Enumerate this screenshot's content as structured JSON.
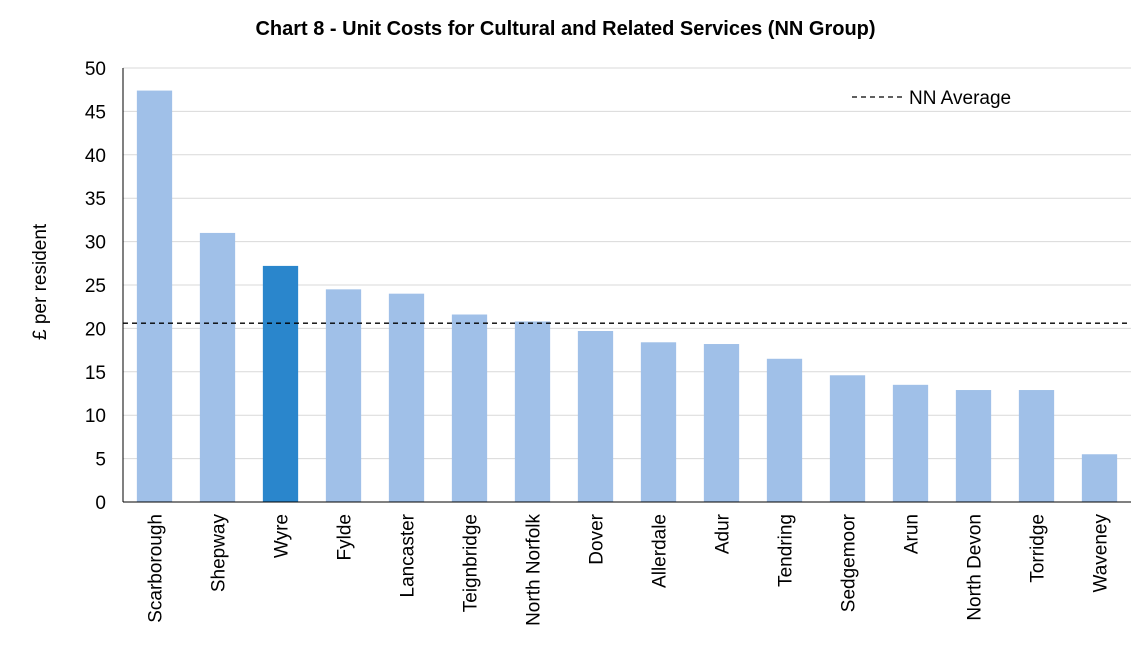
{
  "chart_data": {
    "type": "bar",
    "title": "Chart 8 - Unit Costs for Cultural and Related Services (NN Group)",
    "xlabel": "",
    "ylabel": "£ per resident",
    "ylim": [
      0,
      50
    ],
    "yticks": [
      0,
      5,
      10,
      15,
      20,
      25,
      30,
      35,
      40,
      45,
      50
    ],
    "grid": true,
    "legend": {
      "position": "top-right",
      "entries": [
        "NN Average"
      ]
    },
    "categories": [
      "Scarborough",
      "Shepway",
      "Wyre",
      "Fylde",
      "Lancaster",
      "Teignbridge",
      "North Norfolk",
      "Dover",
      "Allerdale",
      "Adur",
      "Tendring",
      "Sedgemoor",
      "Arun",
      "North Devon",
      "Torridge",
      "Waveney"
    ],
    "values": [
      47.4,
      31.0,
      27.2,
      24.5,
      24.0,
      21.6,
      20.8,
      19.7,
      18.4,
      18.2,
      16.5,
      14.6,
      13.5,
      12.9,
      12.9,
      5.5
    ],
    "highlight_category": "Wyre",
    "average": {
      "label": "NN Average",
      "value": 20.6
    },
    "colors": {
      "bar": "#A0C0E8",
      "highlight": "#2A86CC",
      "grid": "#D9D9D9",
      "axis": "#000000",
      "average_line": "#000000"
    }
  }
}
